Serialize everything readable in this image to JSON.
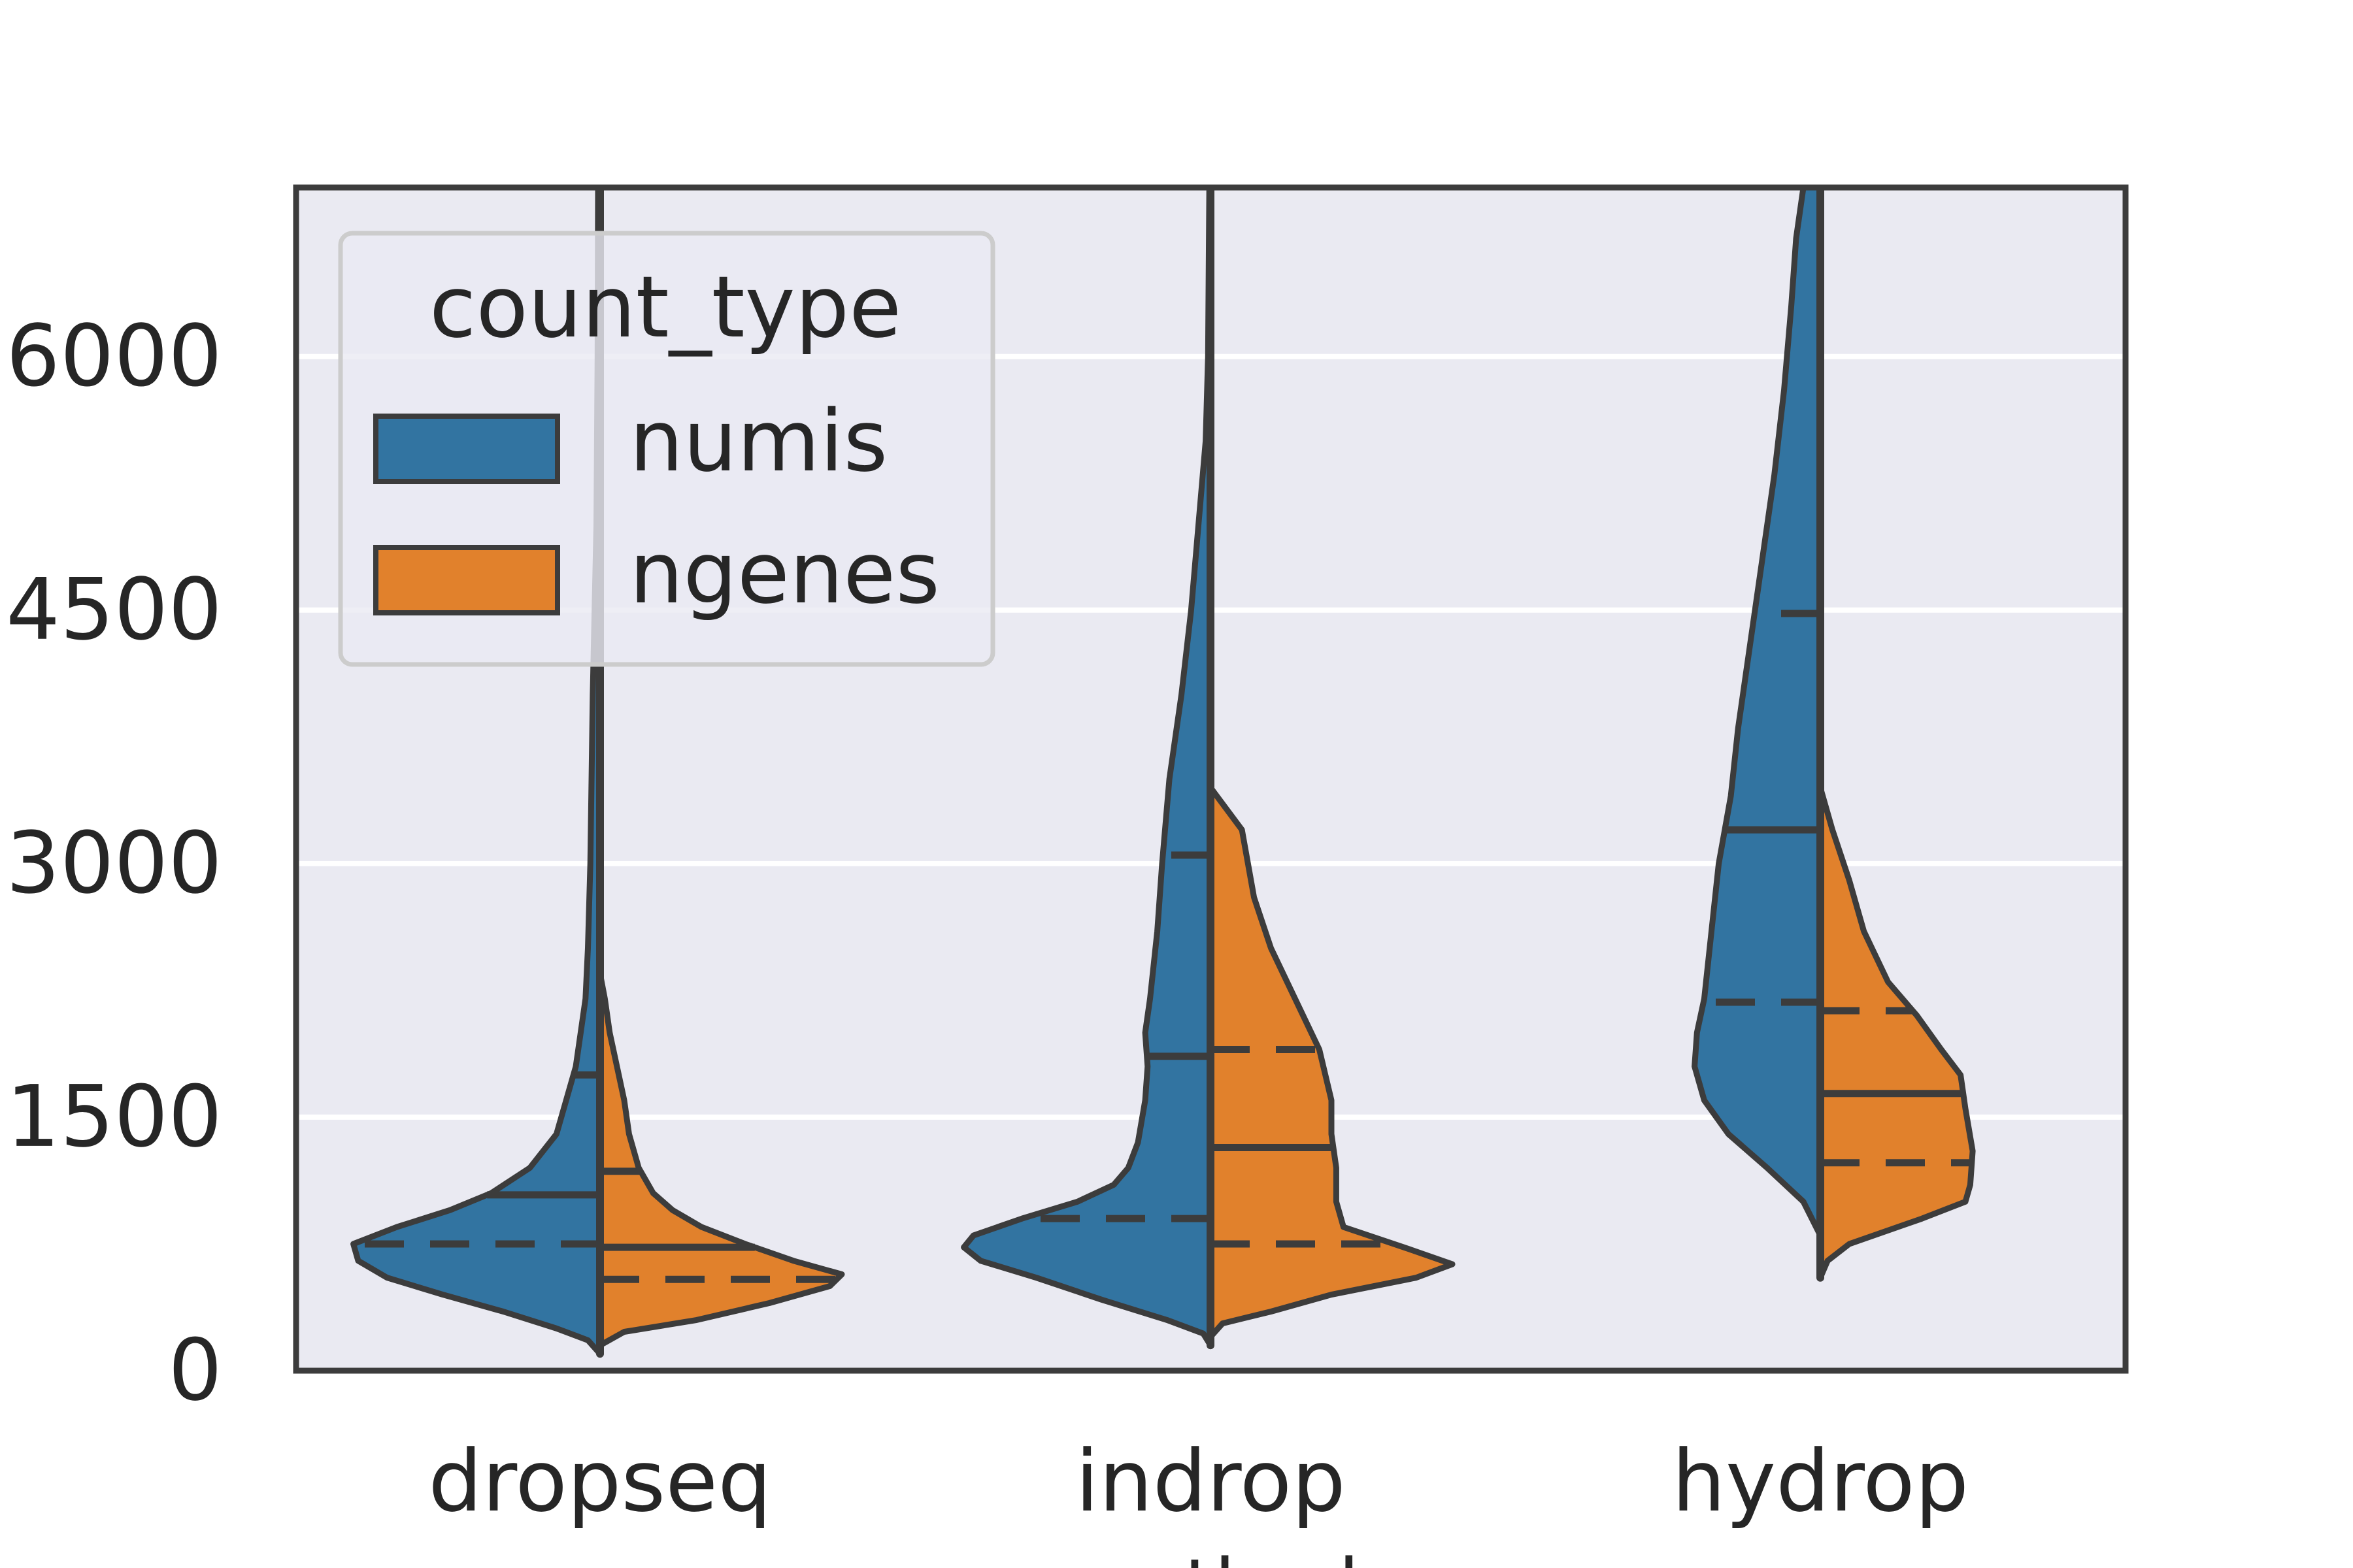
{
  "chart_data": {
    "type": "violin",
    "split": true,
    "categories": [
      "dropseq",
      "indrop",
      "hydrop"
    ],
    "xlabel": "method",
    "ylabel": "",
    "ylim": [
      0,
      7000
    ],
    "yticks": [
      0,
      1500,
      3000,
      4500,
      6000
    ],
    "grid": true,
    "legend": {
      "title": "count_type",
      "placement": "top-left"
    },
    "series": [
      {
        "name": "numis",
        "color": "#3274a1",
        "side": "left",
        "quartiles": {
          "dropseq": [
            750,
            1040,
            1750
          ],
          "indrop": [
            900,
            1860,
            3050
          ],
          "hydrop": [
            2180,
            3200,
            4480
          ]
        },
        "density": {
          "dropseq": [
            [
              100,
              0.0
            ],
            [
              180,
              0.05
            ],
            [
              250,
              0.18
            ],
            [
              350,
              0.4
            ],
            [
              450,
              0.65
            ],
            [
              550,
              0.88
            ],
            [
              650,
              1.0
            ],
            [
              750,
              1.02
            ],
            [
              850,
              0.84
            ],
            [
              950,
              0.62
            ],
            [
              1050,
              0.45
            ],
            [
              1200,
              0.29
            ],
            [
              1400,
              0.18
            ],
            [
              1600,
              0.14
            ],
            [
              1800,
              0.1
            ],
            [
              2000,
              0.08
            ],
            [
              2200,
              0.06
            ],
            [
              2500,
              0.05
            ],
            [
              3000,
              0.04
            ],
            [
              4000,
              0.03
            ],
            [
              5000,
              0.015
            ],
            [
              6000,
              0.01
            ],
            [
              7000,
              0.008
            ]
          ],
          "indrop": [
            [
              150,
              0.0
            ],
            [
              220,
              0.03
            ],
            [
              300,
              0.18
            ],
            [
              420,
              0.45
            ],
            [
              550,
              0.72
            ],
            [
              650,
              0.95
            ],
            [
              730,
              1.02
            ],
            [
              800,
              0.98
            ],
            [
              900,
              0.78
            ],
            [
              1000,
              0.55
            ],
            [
              1100,
              0.4
            ],
            [
              1200,
              0.34
            ],
            [
              1350,
              0.3
            ],
            [
              1600,
              0.27
            ],
            [
              1800,
              0.26
            ],
            [
              2000,
              0.27
            ],
            [
              2200,
              0.25
            ],
            [
              2600,
              0.22
            ],
            [
              3000,
              0.2
            ],
            [
              3500,
              0.17
            ],
            [
              4000,
              0.12
            ],
            [
              4500,
              0.08
            ],
            [
              5000,
              0.05
            ],
            [
              5500,
              0.02
            ],
            [
              6000,
              0.01
            ],
            [
              7000,
              0.005
            ]
          ],
          "hydrop": [
            [
              800,
              0.0
            ],
            [
              1000,
              0.07
            ],
            [
              1200,
              0.22
            ],
            [
              1400,
              0.38
            ],
            [
              1600,
              0.48
            ],
            [
              1800,
              0.52
            ],
            [
              2000,
              0.51
            ],
            [
              2200,
              0.48
            ],
            [
              2600,
              0.45
            ],
            [
              3000,
              0.42
            ],
            [
              3400,
              0.37
            ],
            [
              3800,
              0.34
            ],
            [
              4300,
              0.29
            ],
            [
              4800,
              0.24
            ],
            [
              5300,
              0.19
            ],
            [
              5800,
              0.15
            ],
            [
              6300,
              0.12
            ],
            [
              6700,
              0.1
            ],
            [
              7000,
              0.07
            ]
          ]
        }
      },
      {
        "name": "ngenes",
        "color": "#e1812c",
        "side": "right",
        "quartiles": {
          "dropseq": [
            540,
            730,
            1180
          ],
          "indrop": [
            750,
            1320,
            1900
          ],
          "hydrop": [
            1230,
            1640,
            2130
          ]
        },
        "density": {
          "dropseq": [
            [
              150,
              0.0
            ],
            [
              230,
              0.1
            ],
            [
              300,
              0.4
            ],
            [
              400,
              0.7
            ],
            [
              500,
              0.95
            ],
            [
              570,
              1.0
            ],
            [
              650,
              0.8
            ],
            [
              750,
              0.6
            ],
            [
              850,
              0.42
            ],
            [
              950,
              0.3
            ],
            [
              1050,
              0.22
            ],
            [
              1200,
              0.16
            ],
            [
              1400,
              0.12
            ],
            [
              1600,
              0.1
            ],
            [
              1800,
              0.07
            ],
            [
              2000,
              0.04
            ],
            [
              2200,
              0.02
            ],
            [
              2350,
              0.0
            ]
          ],
          "indrop": [
            [
              200,
              0.0
            ],
            [
              280,
              0.05
            ],
            [
              350,
              0.25
            ],
            [
              450,
              0.5
            ],
            [
              550,
              0.85
            ],
            [
              630,
              1.0
            ],
            [
              720,
              0.82
            ],
            [
              850,
              0.55
            ],
            [
              1000,
              0.52
            ],
            [
              1200,
              0.52
            ],
            [
              1400,
              0.5
            ],
            [
              1600,
              0.5
            ],
            [
              1900,
              0.45
            ],
            [
              2200,
              0.35
            ],
            [
              2500,
              0.25
            ],
            [
              2800,
              0.18
            ],
            [
              3200,
              0.13
            ],
            [
              3450,
              0.0
            ]
          ],
          "hydrop": [
            [
              550,
              0.0
            ],
            [
              650,
              0.03
            ],
            [
              750,
              0.12
            ],
            [
              900,
              0.42
            ],
            [
              1000,
              0.6
            ],
            [
              1100,
              0.62
            ],
            [
              1300,
              0.63
            ],
            [
              1550,
              0.6
            ],
            [
              1750,
              0.58
            ],
            [
              1900,
              0.5
            ],
            [
              2100,
              0.4
            ],
            [
              2300,
              0.28
            ],
            [
              2600,
              0.18
            ],
            [
              2900,
              0.12
            ],
            [
              3200,
              0.05
            ],
            [
              3450,
              0.0
            ]
          ]
        }
      }
    ],
    "ticks": {
      "y": [
        "0",
        "1500",
        "3000",
        "4500",
        "6000"
      ]
    }
  }
}
